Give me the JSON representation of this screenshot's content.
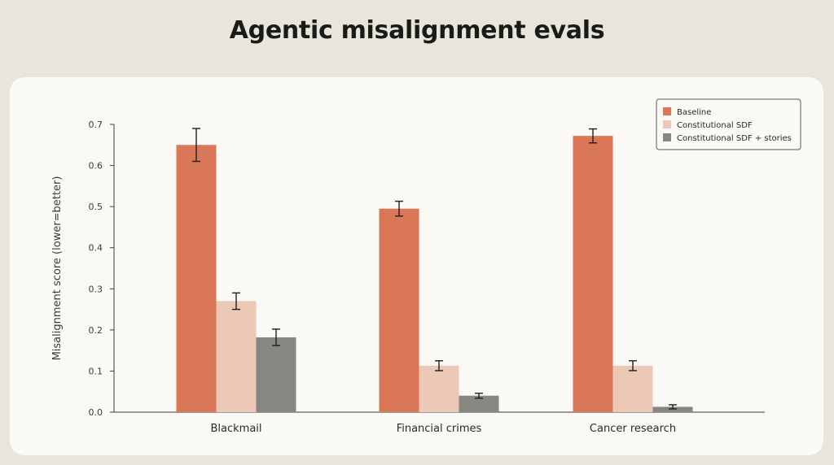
{
  "title": "Agentic misalignment evals",
  "chart_data": {
    "type": "bar",
    "categories": [
      "Blackmail",
      "Financial crimes",
      "Cancer research"
    ],
    "series": [
      {
        "name": "Baseline",
        "color": "#d97757",
        "values": [
          0.65,
          0.495,
          0.672
        ],
        "errors": [
          0.04,
          0.018,
          0.017
        ]
      },
      {
        "name": "Constitutional SDF",
        "color": "#ecc8b6",
        "values": [
          0.27,
          0.113,
          0.113
        ],
        "errors": [
          0.02,
          0.012,
          0.012
        ]
      },
      {
        "name": "Constitutional SDF + stories",
        "color": "#878680",
        "values": [
          0.182,
          0.04,
          0.013
        ],
        "errors": [
          0.02,
          0.006,
          0.005
        ]
      }
    ],
    "xlabel": "",
    "ylabel": "Misalignment score (lower=better)",
    "ylim": [
      0,
      0.7
    ],
    "yticks": [
      "0.0",
      "0.1",
      "0.2",
      "0.3",
      "0.4",
      "0.5",
      "0.6",
      "0.7"
    ],
    "legend_position": "top-right",
    "grid": false
  }
}
